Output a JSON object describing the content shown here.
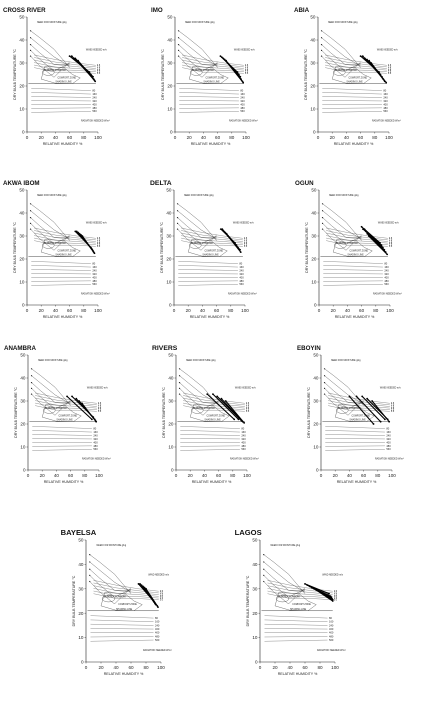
{
  "labels": {
    "need_for_moisture": "NEED FOR MOISTURE g/kg",
    "wind_needed": "WIND NEEDED m/s",
    "comfort_zone": "COMFORT ZONE",
    "shading_line": "SHADING LINE",
    "radiation_needed": "RADIATION NEEDED W/m²",
    "elderly_comfort": "ELDERLY COMFORT"
  },
  "radiation_values": [
    "80",
    "160",
    "240",
    "320",
    "400",
    "480",
    "560"
  ],
  "wind_values": [
    "0.5",
    "1.0",
    "1.5",
    "2.0",
    "2.5",
    "3.0"
  ],
  "chart_data": [
    {
      "type": "line",
      "title": "CROSS RIVER",
      "xlabel": "RELATIVE HUMIDITY %",
      "ylabel": "DRY BULB TEMPERATURE °C",
      "xlim": [
        0,
        100
      ],
      "ylim": [
        0,
        50
      ],
      "xticks": [
        0,
        20,
        40,
        60,
        80,
        100
      ],
      "yticks": [
        0,
        10,
        20,
        30,
        40,
        50
      ],
      "series": [
        {
          "x": [
            60,
            88
          ],
          "y": [
            33,
            26
          ]
        },
        {
          "x": [
            63,
            90
          ],
          "y": [
            33,
            25
          ]
        },
        {
          "x": [
            66,
            91
          ],
          "y": [
            32,
            24.5
          ]
        },
        {
          "x": [
            68,
            93
          ],
          "y": [
            32,
            24
          ]
        },
        {
          "x": [
            70,
            94
          ],
          "y": [
            31,
            23
          ]
        },
        {
          "x": [
            72,
            95
          ],
          "y": [
            31,
            22.5
          ]
        },
        {
          "x": [
            74,
            96
          ],
          "y": [
            30,
            22
          ]
        }
      ]
    },
    {
      "type": "line",
      "title": "IMO",
      "xlabel": "RELATIVE HUMIDITY %",
      "ylabel": "DRY BULB TEMPERATURE °C",
      "xlim": [
        0,
        100
      ],
      "ylim": [
        0,
        50
      ],
      "xticks": [
        0,
        20,
        40,
        60,
        80,
        100
      ],
      "yticks": [
        0,
        10,
        20,
        30,
        40,
        50
      ],
      "series": [
        {
          "x": [
            64,
            88
          ],
          "y": [
            33,
            26
          ]
        },
        {
          "x": [
            66,
            90
          ],
          "y": [
            32.5,
            25
          ]
        },
        {
          "x": [
            68,
            92
          ],
          "y": [
            32,
            24
          ]
        },
        {
          "x": [
            70,
            93
          ],
          "y": [
            31.5,
            23
          ]
        },
        {
          "x": [
            72,
            95
          ],
          "y": [
            31,
            22
          ]
        },
        {
          "x": [
            74,
            96
          ],
          "y": [
            30,
            21.5
          ]
        }
      ]
    },
    {
      "type": "line",
      "title": "ABIA",
      "xlabel": "RELATIVE HUMIDITY %",
      "ylabel": "DRY BULB TEMPERATURE °C",
      "xlim": [
        0,
        100
      ],
      "ylim": [
        0,
        50
      ],
      "xticks": [
        0,
        20,
        40,
        60,
        80,
        100
      ],
      "yticks": [
        0,
        10,
        20,
        30,
        40,
        50
      ],
      "series": [
        {
          "x": [
            60,
            86
          ],
          "y": [
            33,
            26
          ]
        },
        {
          "x": [
            63,
            88
          ],
          "y": [
            33,
            25
          ]
        },
        {
          "x": [
            66,
            90
          ],
          "y": [
            32,
            24
          ]
        },
        {
          "x": [
            69,
            92
          ],
          "y": [
            31.5,
            23
          ]
        },
        {
          "x": [
            72,
            94
          ],
          "y": [
            31,
            22
          ]
        },
        {
          "x": [
            75,
            96
          ],
          "y": [
            30,
            21.5
          ]
        }
      ]
    },
    {
      "type": "line",
      "title": "AKWA IBOM",
      "xlabel": "RELATIVE HUMIDITY %",
      "ylabel": "DRY BULB TEMPERATURE °C",
      "xlim": [
        0,
        100
      ],
      "ylim": [
        0,
        50
      ],
      "xticks": [
        0,
        20,
        40,
        60,
        80,
        100
      ],
      "yticks": [
        0,
        10,
        20,
        30,
        40,
        50
      ],
      "series": [
        {
          "x": [
            68,
            90
          ],
          "y": [
            32,
            25
          ]
        },
        {
          "x": [
            70,
            91
          ],
          "y": [
            32,
            24.5
          ]
        },
        {
          "x": [
            72,
            92
          ],
          "y": [
            31.5,
            24
          ]
        },
        {
          "x": [
            74,
            93
          ],
          "y": [
            31,
            23.5
          ]
        },
        {
          "x": [
            76,
            94
          ],
          "y": [
            30.5,
            23
          ]
        },
        {
          "x": [
            78,
            95
          ],
          "y": [
            30,
            22.5
          ]
        }
      ]
    },
    {
      "type": "line",
      "title": "DELTA",
      "xlabel": "RELATIVE HUMIDITY %",
      "ylabel": "DRY BULB TEMPERATURE °C",
      "xlim": [
        0,
        100
      ],
      "ylim": [
        0,
        50
      ],
      "xticks": [
        0,
        20,
        40,
        60,
        80,
        100
      ],
      "yticks": [
        0,
        10,
        20,
        30,
        40,
        50
      ],
      "series": [
        {
          "x": [
            66,
            86
          ],
          "y": [
            33,
            27
          ]
        },
        {
          "x": [
            68,
            88
          ],
          "y": [
            33,
            26
          ]
        },
        {
          "x": [
            70,
            90
          ],
          "y": [
            32,
            25
          ]
        },
        {
          "x": [
            72,
            91
          ],
          "y": [
            31.5,
            24.5
          ]
        },
        {
          "x": [
            74,
            93
          ],
          "y": [
            31,
            24
          ]
        },
        {
          "x": [
            76,
            94
          ],
          "y": [
            30,
            23
          ]
        }
      ]
    },
    {
      "type": "line",
      "title": "OGUN",
      "xlabel": "RELATIVE HUMIDITY %",
      "ylabel": "DRY BULB TEMPERATURE °C",
      "xlim": [
        0,
        100
      ],
      "ylim": [
        0,
        50
      ],
      "xticks": [
        0,
        20,
        40,
        60,
        80,
        100
      ],
      "yticks": [
        0,
        10,
        20,
        30,
        40,
        50
      ],
      "series": [
        {
          "x": [
            60,
            86
          ],
          "y": [
            34,
            27
          ]
        },
        {
          "x": [
            62,
            88
          ],
          "y": [
            33,
            26
          ]
        },
        {
          "x": [
            64,
            90
          ],
          "y": [
            33,
            25
          ]
        },
        {
          "x": [
            66,
            92
          ],
          "y": [
            32,
            24
          ]
        },
        {
          "x": [
            68,
            94
          ],
          "y": [
            31,
            23
          ]
        },
        {
          "x": [
            70,
            96
          ],
          "y": [
            30,
            22
          ]
        }
      ]
    },
    {
      "type": "line",
      "title": "ANAMBRA",
      "xlabel": "RELATIVE HUMIDITY %",
      "ylabel": "DRY BULB TEMPERATURE °C",
      "xlim": [
        0,
        100
      ],
      "ylim": [
        0,
        50
      ],
      "xticks": [
        0,
        20,
        40,
        60,
        80,
        100
      ],
      "yticks": [
        0,
        10,
        20,
        30,
        40,
        50
      ],
      "series": [
        {
          "x": [
            55,
            90
          ],
          "y": [
            32,
            22
          ]
        },
        {
          "x": [
            62,
            92
          ],
          "y": [
            32,
            23
          ]
        },
        {
          "x": [
            68,
            94
          ],
          "y": [
            31,
            22
          ]
        },
        {
          "x": [
            72,
            95
          ],
          "y": [
            30,
            21.5
          ]
        },
        {
          "x": [
            76,
            96
          ],
          "y": [
            29,
            21
          ]
        }
      ]
    },
    {
      "type": "line",
      "title": "RIVERS",
      "xlabel": "RELATIVE HUMIDITY %",
      "ylabel": "DRY BULB TEMPERATURE °C",
      "xlim": [
        0,
        100
      ],
      "ylim": [
        0,
        50
      ],
      "xticks": [
        0,
        20,
        40,
        60,
        80,
        100
      ],
      "yticks": [
        0,
        10,
        20,
        30,
        40,
        50
      ],
      "series": [
        {
          "x": [
            44,
            82
          ],
          "y": [
            33,
            22
          ]
        },
        {
          "x": [
            52,
            88
          ],
          "y": [
            33,
            22
          ]
        },
        {
          "x": [
            58,
            92
          ],
          "y": [
            32,
            21.5
          ]
        },
        {
          "x": [
            64,
            94
          ],
          "y": [
            31,
            21
          ]
        },
        {
          "x": [
            70,
            96
          ],
          "y": [
            30,
            20.5
          ]
        }
      ]
    },
    {
      "type": "line",
      "title": "EBOYIN",
      "xlabel": "RELATIVE HUMIDITY %",
      "ylabel": "DRY BULB TEMPERATURE °C",
      "xlim": [
        0,
        100
      ],
      "ylim": [
        0,
        50
      ],
      "xticks": [
        0,
        20,
        40,
        60,
        80,
        100
      ],
      "yticks": [
        0,
        10,
        20,
        30,
        40,
        50
      ],
      "series": [
        {
          "x": [
            40,
            74
          ],
          "y": [
            32,
            20
          ]
        },
        {
          "x": [
            50,
            84
          ],
          "y": [
            32,
            21
          ]
        },
        {
          "x": [
            58,
            90
          ],
          "y": [
            32,
            22
          ]
        },
        {
          "x": [
            65,
            94
          ],
          "y": [
            31,
            22
          ]
        },
        {
          "x": [
            72,
            96
          ],
          "y": [
            30,
            21
          ]
        }
      ]
    },
    {
      "type": "line",
      "title": "BAYELSA",
      "xlabel": "RELATIVE HUMIDITY %",
      "ylabel": "DRY BULB TEMPERATURE °C",
      "xlim": [
        0,
        100
      ],
      "ylim": [
        0,
        50
      ],
      "xticks": [
        0,
        20,
        40,
        60,
        80,
        100
      ],
      "yticks": [
        0,
        10,
        20,
        30,
        40,
        50
      ],
      "series": [
        {
          "x": [
            70,
            90
          ],
          "y": [
            32,
            25
          ]
        },
        {
          "x": [
            72,
            91
          ],
          "y": [
            32,
            24.5
          ]
        },
        {
          "x": [
            74,
            92
          ],
          "y": [
            31.5,
            24
          ]
        },
        {
          "x": [
            76,
            93
          ],
          "y": [
            31,
            23.5
          ]
        },
        {
          "x": [
            78,
            95
          ],
          "y": [
            30.5,
            23
          ]
        },
        {
          "x": [
            80,
            96
          ],
          "y": [
            30,
            22.5
          ]
        }
      ]
    },
    {
      "type": "line",
      "title": "LAGOS",
      "xlabel": "RELATIVE HUMIDITY %",
      "ylabel": "DRY BULB TEMPERATURE °C",
      "xlim": [
        0,
        100
      ],
      "ylim": [
        0,
        50
      ],
      "xticks": [
        0,
        20,
        40,
        60,
        80,
        100
      ],
      "yticks": [
        0,
        10,
        20,
        30,
        40,
        50
      ],
      "series": [
        {
          "x": [
            60,
            92
          ],
          "y": [
            32,
            28
          ]
        },
        {
          "x": [
            63,
            94
          ],
          "y": [
            31.5,
            27
          ]
        },
        {
          "x": [
            66,
            95
          ],
          "y": [
            31,
            26.5
          ]
        },
        {
          "x": [
            69,
            96
          ],
          "y": [
            30.5,
            26
          ]
        },
        {
          "x": [
            72,
            97
          ],
          "y": [
            30,
            25.5
          ]
        },
        {
          "x": [
            75,
            97
          ],
          "y": [
            29.5,
            25
          ]
        }
      ]
    }
  ]
}
